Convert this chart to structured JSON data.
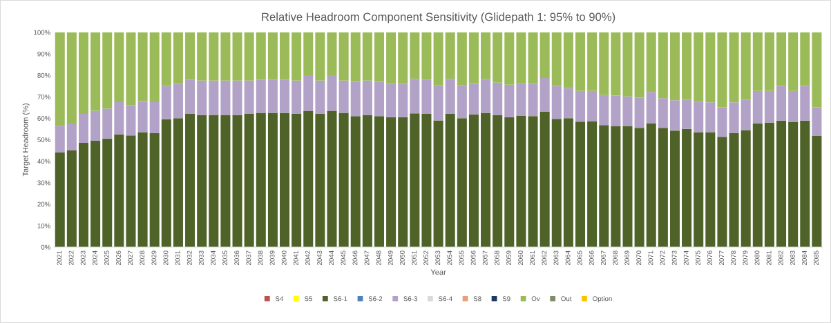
{
  "chart_data": {
    "type": "bar",
    "stacked": true,
    "title": "Relative Headroom Component Sensitivity (Glidepath 1: 95% to 90%)",
    "xlabel": "Year",
    "ylabel": "Target Headroom (%)",
    "categories": [
      "2021",
      "2022",
      "2023",
      "2024",
      "2025",
      "2026",
      "2027",
      "2028",
      "2029",
      "2030",
      "2031",
      "2032",
      "2033",
      "2034",
      "2035",
      "2036",
      "2037",
      "2038",
      "2039",
      "2040",
      "2041",
      "2042",
      "2043",
      "2044",
      "2045",
      "2046",
      "2047",
      "2048",
      "2049",
      "2050",
      "2051",
      "2052",
      "2053",
      "2054",
      "2055",
      "2056",
      "2057",
      "2058",
      "2059",
      "2060",
      "2061",
      "2062",
      "2063",
      "2064",
      "2065",
      "2066",
      "2067",
      "2068",
      "2069",
      "2070",
      "2071",
      "2072",
      "2073",
      "2074",
      "2075",
      "2076",
      "2077",
      "2078",
      "2079",
      "2080",
      "2081",
      "2082",
      "2083",
      "2084",
      "2085"
    ],
    "ylim": [
      0,
      100
    ],
    "yticks": [
      {
        "value": 0,
        "label": "0%"
      },
      {
        "value": 10,
        "label": "10%"
      },
      {
        "value": 20,
        "label": "20%"
      },
      {
        "value": 30,
        "label": "30%"
      },
      {
        "value": 40,
        "label": "40%"
      },
      {
        "value": 50,
        "label": "50%"
      },
      {
        "value": 60,
        "label": "60%"
      },
      {
        "value": 70,
        "label": "70%"
      },
      {
        "value": 80,
        "label": "80%"
      },
      {
        "value": 90,
        "label": "90%"
      },
      {
        "value": 100,
        "label": "100%"
      }
    ],
    "legend": "bottom",
    "series": [
      {
        "name": "S4",
        "color": "#c0504d",
        "values": [
          0,
          0,
          0,
          0,
          0,
          0,
          0,
          0,
          0,
          0,
          0,
          0,
          0,
          0,
          0,
          0,
          0,
          0,
          0,
          0,
          0,
          0,
          0,
          0,
          0,
          0,
          0,
          0,
          0,
          0,
          0,
          0,
          0,
          0,
          0,
          0,
          0,
          0,
          0,
          0,
          0,
          0,
          0,
          0,
          0,
          0,
          0,
          0,
          0,
          0,
          0,
          0,
          0,
          0,
          0,
          0,
          0,
          0,
          0,
          0,
          0,
          0,
          0,
          0,
          0
        ]
      },
      {
        "name": "S5",
        "color": "#ffff00",
        "values": [
          0,
          0,
          0,
          0,
          0,
          0,
          0,
          0,
          0,
          0,
          0,
          0,
          0,
          0,
          0,
          0,
          0,
          0,
          0,
          0,
          0,
          0,
          0,
          0,
          0,
          0,
          0,
          0,
          0,
          0,
          0,
          0,
          0,
          0,
          0,
          0,
          0,
          0,
          0,
          0,
          0,
          0,
          0,
          0,
          0,
          0,
          0,
          0,
          0,
          0,
          0,
          0,
          0,
          0,
          0,
          0,
          0,
          0,
          0,
          0,
          0,
          0,
          0,
          0,
          0
        ]
      },
      {
        "name": "S6-1",
        "color": "#4f6228",
        "values": [
          44,
          45,
          48.5,
          49.5,
          50.5,
          52.5,
          52,
          53.5,
          53,
          59.5,
          60,
          62,
          61.5,
          61.5,
          61.5,
          61.5,
          62,
          62.5,
          62.5,
          62.5,
          62,
          63.5,
          62,
          63.5,
          62.5,
          61,
          61.5,
          61,
          60.5,
          60.5,
          62.3,
          62,
          59,
          62,
          60,
          61.8,
          62.5,
          61.5,
          60.5,
          61.2,
          61,
          63,
          59.7,
          60,
          58.4,
          58.6,
          56.8,
          56.4,
          56.4,
          55.5,
          57.5,
          55.5,
          54.2,
          55,
          53.5,
          53.5,
          51.3,
          53.2,
          54.5,
          57.6,
          58,
          58.9,
          58.2,
          58.9,
          51.9
        ]
      },
      {
        "name": "S6-2",
        "color": "#4f81bd",
        "values": [
          0,
          0,
          0,
          0,
          0,
          0,
          0,
          0,
          0,
          0,
          0,
          0,
          0,
          0,
          0,
          0,
          0,
          0,
          0,
          0,
          0,
          0,
          0,
          0,
          0,
          0,
          0,
          0,
          0,
          0,
          0,
          0,
          0,
          0,
          0,
          0,
          0,
          0,
          0,
          0,
          0,
          0,
          0,
          0,
          0,
          0,
          0,
          0,
          0,
          0,
          0,
          0,
          0,
          0,
          0,
          0,
          0,
          0,
          0,
          0,
          0,
          0,
          0,
          0,
          0
        ]
      },
      {
        "name": "S6-3",
        "color": "#b3a2c7",
        "values": [
          12.5,
          12.5,
          13.5,
          14,
          14,
          15,
          14,
          14.5,
          14.5,
          15.5,
          16,
          16,
          16,
          16,
          16,
          16,
          15.5,
          15.5,
          15.5,
          15.5,
          15.5,
          16.5,
          15.5,
          16.5,
          15,
          16,
          16,
          16,
          15.5,
          15.5,
          16,
          16,
          16.3,
          16.3,
          15.3,
          14.5,
          15.8,
          15.1,
          15.1,
          14.8,
          15,
          15.7,
          15.3,
          14,
          14.3,
          14.1,
          14,
          14.1,
          13.7,
          14.1,
          14.7,
          13.8,
          14.2,
          13.7,
          14.2,
          13.9,
          13.8,
          14.2,
          14.2,
          15.1,
          14.7,
          16.1,
          14.5,
          16.1,
          13.2
        ]
      },
      {
        "name": "S6-4",
        "color": "#d9d9d9",
        "values": [
          0,
          0,
          0,
          0,
          0,
          0,
          0,
          0,
          0,
          0,
          0,
          0,
          0,
          0,
          0,
          0,
          0,
          0,
          0,
          0,
          0,
          0,
          0,
          0,
          0,
          0,
          0,
          0,
          0,
          0,
          0,
          0,
          0,
          0,
          0,
          0,
          0,
          0,
          0,
          0,
          0,
          0,
          0,
          0,
          0,
          0,
          0,
          0,
          0,
          0,
          0,
          0,
          0,
          0,
          0,
          0,
          0,
          0,
          0,
          0,
          0,
          0,
          0,
          0,
          0
        ]
      },
      {
        "name": "S8",
        "color": "#e6a07a",
        "values": [
          0,
          0,
          0,
          0,
          0,
          0,
          0,
          0,
          0,
          0,
          0,
          0,
          0,
          0,
          0,
          0,
          0,
          0,
          0,
          0,
          0,
          0,
          0,
          0,
          0,
          0,
          0,
          0,
          0,
          0,
          0,
          0,
          0,
          0,
          0,
          0,
          0,
          0,
          0,
          0,
          0,
          0,
          0,
          0,
          0,
          0,
          0,
          0,
          0,
          0,
          0,
          0,
          0,
          0,
          0,
          0,
          0,
          0,
          0,
          0,
          0,
          0,
          0,
          0,
          0
        ]
      },
      {
        "name": "S9",
        "color": "#1f3864",
        "values": [
          0,
          0,
          0,
          0,
          0,
          0,
          0,
          0,
          0,
          0,
          0,
          0,
          0,
          0,
          0,
          0,
          0,
          0,
          0,
          0,
          0,
          0,
          0,
          0,
          0,
          0,
          0,
          0,
          0,
          0,
          0,
          0,
          0,
          0,
          0,
          0,
          0,
          0,
          0,
          0,
          0,
          0,
          0,
          0,
          0,
          0,
          0,
          0,
          0,
          0,
          0,
          0,
          0,
          0,
          0,
          0,
          0,
          0,
          0,
          0,
          0,
          0,
          0,
          0,
          0
        ]
      },
      {
        "name": "Ov",
        "color": "#9bbb59",
        "values": [
          43.5,
          42.5,
          38,
          36.5,
          35.5,
          32.5,
          34,
          32,
          32.5,
          25,
          24,
          22,
          22.5,
          22.5,
          22.5,
          22.5,
          22.5,
          22,
          22,
          22,
          22.5,
          20,
          22.5,
          20,
          22.5,
          23,
          22.5,
          23,
          24,
          24,
          21.7,
          22,
          24.7,
          21.7,
          24.7,
          23.7,
          21.7,
          23.4,
          24.4,
          24,
          24,
          21.3,
          25,
          26,
          27.3,
          27.3,
          29.2,
          29.5,
          29.9,
          30.4,
          27.8,
          30.7,
          31.6,
          31.3,
          32.3,
          32.6,
          34.9,
          32.6,
          31.3,
          27.3,
          27.3,
          25,
          27.3,
          25,
          34.9
        ]
      },
      {
        "name": "Out",
        "color": "#7f8c6a",
        "values": [
          0,
          0,
          0,
          0,
          0,
          0,
          0,
          0,
          0,
          0,
          0,
          0,
          0,
          0,
          0,
          0,
          0,
          0,
          0,
          0,
          0,
          0,
          0,
          0,
          0,
          0,
          0,
          0,
          0,
          0,
          0,
          0,
          0,
          0,
          0,
          0,
          0,
          0,
          0,
          0,
          0,
          0,
          0,
          0,
          0,
          0,
          0,
          0,
          0,
          0,
          0,
          0,
          0,
          0,
          0,
          0,
          0,
          0,
          0,
          0,
          0,
          0,
          0,
          0,
          0
        ]
      },
      {
        "name": "Option",
        "color": "#ffc000",
        "values": [
          0,
          0,
          0,
          0,
          0,
          0,
          0,
          0,
          0,
          0,
          0,
          0,
          0,
          0,
          0,
          0,
          0,
          0,
          0,
          0,
          0,
          0,
          0,
          0,
          0,
          0,
          0,
          0,
          0,
          0,
          0,
          0,
          0,
          0,
          0,
          0,
          0,
          0,
          0,
          0,
          0,
          0,
          0,
          0,
          0,
          0,
          0,
          0,
          0,
          0,
          0,
          0,
          0,
          0,
          0,
          0,
          0,
          0,
          0,
          0,
          0,
          0,
          0,
          0,
          0
        ]
      }
    ]
  }
}
